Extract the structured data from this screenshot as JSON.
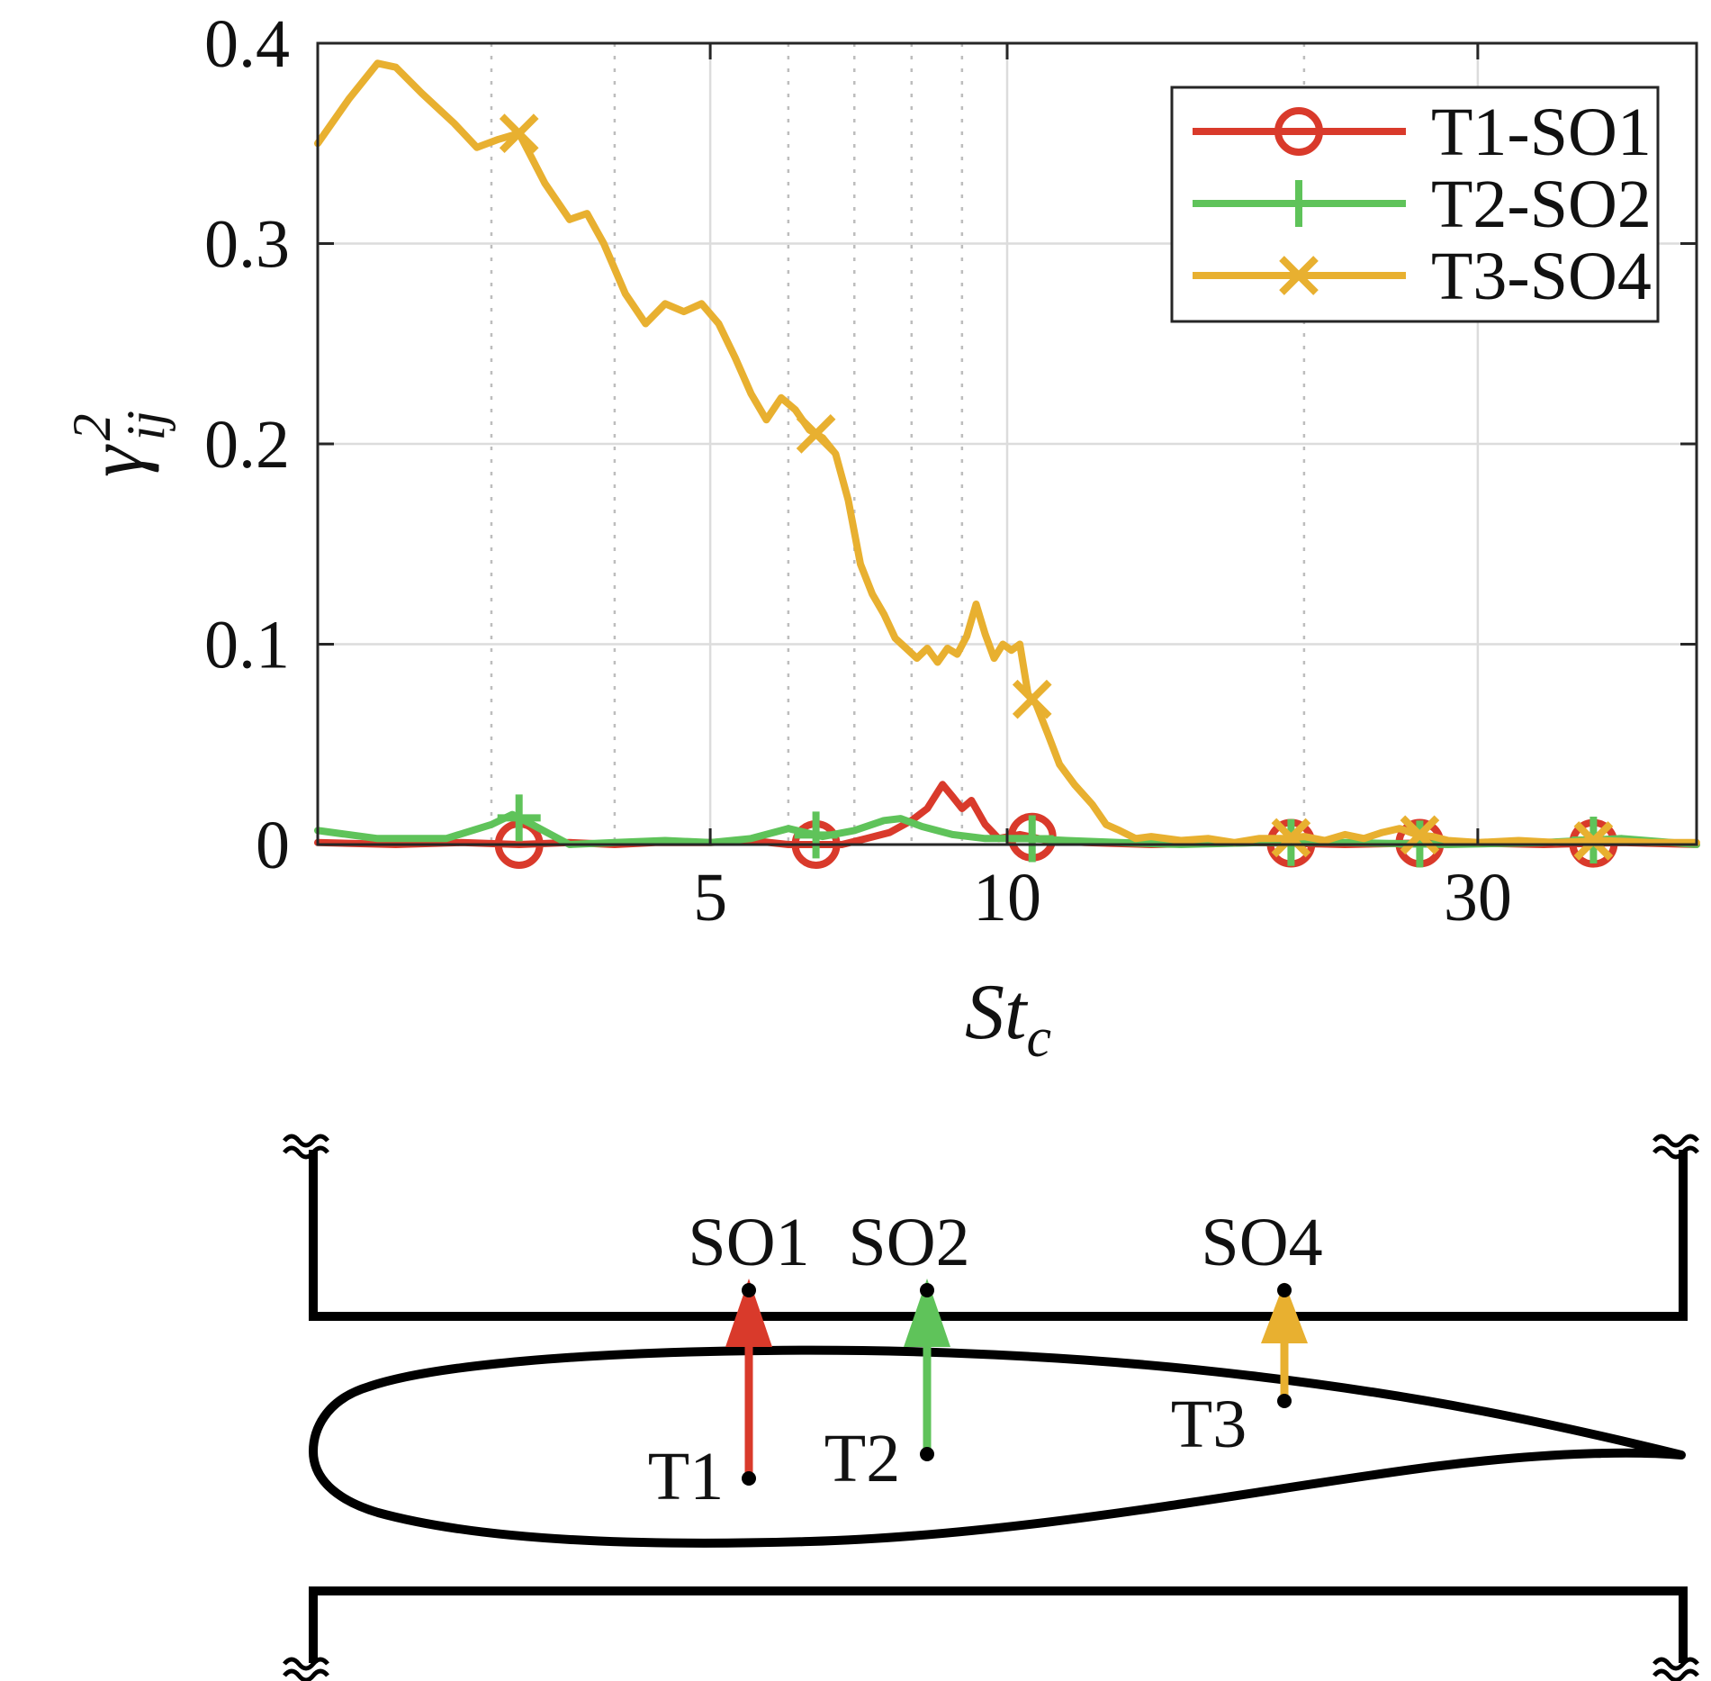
{
  "chart_data": {
    "type": "line",
    "title": "",
    "xlabel": "St",
    "xlabel_sub": "c",
    "ylabel": "γ",
    "ylabel_sup": "2",
    "ylabel_sub": "ij",
    "x_scale": "log",
    "xlim": [
      2,
      50
    ],
    "ylim": [
      0,
      0.4
    ],
    "x_ticks": [
      {
        "value": 5,
        "label": "5"
      },
      {
        "value": 10,
        "label": "10"
      },
      {
        "value": 30,
        "label": "30"
      }
    ],
    "y_ticks": [
      {
        "value": 0,
        "label": "0"
      },
      {
        "value": 0.1,
        "label": "0.1"
      },
      {
        "value": 0.2,
        "label": "0.2"
      },
      {
        "value": 0.3,
        "label": "0.3"
      },
      {
        "value": 0.4,
        "label": "0.4"
      }
    ],
    "grid_major_x": [
      5,
      10,
      30
    ],
    "grid_minor_x": [
      3,
      4,
      6,
      7,
      8,
      9,
      20
    ],
    "grid": true,
    "legend_position": "top-right",
    "series": [
      {
        "name": "T1-SO1",
        "color": "#d93a2b",
        "marker": "circle",
        "points": [
          [
            2,
            0.001
          ],
          [
            2.4,
            0
          ],
          [
            2.8,
            0.001
          ],
          [
            3.2,
            0
          ],
          [
            3.6,
            0.001
          ],
          [
            4,
            0
          ],
          [
            4.4,
            0.001
          ],
          [
            5,
            0.001
          ],
          [
            5.5,
            0.002
          ],
          [
            6,
            0
          ],
          [
            6.8,
            0
          ],
          [
            7.2,
            0.003
          ],
          [
            7.6,
            0.006
          ],
          [
            8,
            0.012
          ],
          [
            8.3,
            0.018
          ],
          [
            8.6,
            0.03
          ],
          [
            8.8,
            0.024
          ],
          [
            9,
            0.018
          ],
          [
            9.2,
            0.022
          ],
          [
            9.5,
            0.01
          ],
          [
            9.8,
            0.003
          ],
          [
            10.3,
            0.005
          ],
          [
            11,
            0.002
          ],
          [
            12,
            0.001
          ],
          [
            14,
            0
          ],
          [
            18,
            0.001
          ],
          [
            22,
            0
          ],
          [
            28,
            0.001
          ],
          [
            35,
            0
          ],
          [
            42,
            0.001
          ],
          [
            50,
            0
          ]
        ],
        "markers_x": [
          3.2,
          6.4,
          10.6,
          19.4,
          26.2,
          39.3
        ]
      },
      {
        "name": "T2-SO2",
        "color": "#5fc35a",
        "marker": "plus",
        "points": [
          [
            2,
            0.007
          ],
          [
            2.3,
            0.003
          ],
          [
            2.7,
            0.003
          ],
          [
            3,
            0.01
          ],
          [
            3.15,
            0.015
          ],
          [
            3.3,
            0.01
          ],
          [
            3.6,
            0
          ],
          [
            4,
            0.001
          ],
          [
            4.5,
            0.002
          ],
          [
            5,
            0.001
          ],
          [
            5.5,
            0.003
          ],
          [
            6,
            0.008
          ],
          [
            6.5,
            0.004
          ],
          [
            7,
            0.007
          ],
          [
            7.5,
            0.012
          ],
          [
            7.8,
            0.013
          ],
          [
            8.2,
            0.009
          ],
          [
            8.8,
            0.005
          ],
          [
            9.5,
            0.003
          ],
          [
            10.5,
            0.003
          ],
          [
            11.5,
            0.002
          ],
          [
            13,
            0.001
          ],
          [
            15,
            0
          ],
          [
            18,
            0.001
          ],
          [
            22,
            0.001
          ],
          [
            28,
            0
          ],
          [
            35,
            0.001
          ],
          [
            42,
            0.003
          ],
          [
            50,
            0
          ]
        ],
        "markers_x": [
          3.2,
          6.4,
          10.6,
          19.4,
          26.2,
          39.3
        ]
      },
      {
        "name": "T3-SO4",
        "color": "#e8b030",
        "marker": "x",
        "points": [
          [
            2,
            0.35
          ],
          [
            2.15,
            0.372
          ],
          [
            2.3,
            0.39
          ],
          [
            2.4,
            0.388
          ],
          [
            2.55,
            0.375
          ],
          [
            2.75,
            0.36
          ],
          [
            2.9,
            0.348
          ],
          [
            3.05,
            0.352
          ],
          [
            3.2,
            0.355
          ],
          [
            3.4,
            0.33
          ],
          [
            3.6,
            0.312
          ],
          [
            3.75,
            0.315
          ],
          [
            3.9,
            0.3
          ],
          [
            4.1,
            0.275
          ],
          [
            4.3,
            0.26
          ],
          [
            4.5,
            0.27
          ],
          [
            4.7,
            0.266
          ],
          [
            4.9,
            0.27
          ],
          [
            5.1,
            0.26
          ],
          [
            5.3,
            0.243
          ],
          [
            5.5,
            0.225
          ],
          [
            5.7,
            0.212
          ],
          [
            5.9,
            0.223
          ],
          [
            6.1,
            0.217
          ],
          [
            6.3,
            0.207
          ],
          [
            6.5,
            0.203
          ],
          [
            6.7,
            0.195
          ],
          [
            6.9,
            0.172
          ],
          [
            7.1,
            0.14
          ],
          [
            7.3,
            0.125
          ],
          [
            7.5,
            0.115
          ],
          [
            7.7,
            0.103
          ],
          [
            7.9,
            0.098
          ],
          [
            8.1,
            0.093
          ],
          [
            8.3,
            0.098
          ],
          [
            8.5,
            0.091
          ],
          [
            8.7,
            0.098
          ],
          [
            8.9,
            0.095
          ],
          [
            9.1,
            0.104
          ],
          [
            9.3,
            0.12
          ],
          [
            9.5,
            0.105
          ],
          [
            9.7,
            0.093
          ],
          [
            9.9,
            0.1
          ],
          [
            10.1,
            0.097
          ],
          [
            10.3,
            0.1
          ],
          [
            10.5,
            0.075
          ],
          [
            10.7,
            0.07
          ],
          [
            11,
            0.055
          ],
          [
            11.3,
            0.04
          ],
          [
            11.7,
            0.03
          ],
          [
            12.2,
            0.02
          ],
          [
            12.6,
            0.01
          ],
          [
            13,
            0.007
          ],
          [
            13.5,
            0.003
          ],
          [
            14,
            0.004
          ],
          [
            15,
            0.002
          ],
          [
            16,
            0.003
          ],
          [
            17,
            0.001
          ],
          [
            18,
            0.003
          ],
          [
            19,
            0.003
          ],
          [
            20,
            0.004
          ],
          [
            21,
            0.002
          ],
          [
            22,
            0.005
          ],
          [
            23,
            0.003
          ],
          [
            24,
            0.006
          ],
          [
            25,
            0.008
          ],
          [
            26,
            0.005
          ],
          [
            27,
            0.004
          ],
          [
            28,
            0.002
          ],
          [
            30,
            0.001
          ],
          [
            33,
            0.002
          ],
          [
            36,
            0.001
          ],
          [
            40,
            0.002
          ],
          [
            45,
            0.001
          ],
          [
            50,
            0.001
          ]
        ],
        "markers_x": [
          3.2,
          6.4,
          10.6,
          19.4,
          26.2,
          39.3
        ]
      }
    ]
  },
  "diagram": {
    "sensor_labels": [
      "SO1",
      "SO2",
      "SO4"
    ],
    "transducer_labels": [
      "T1",
      "T2",
      "T3"
    ],
    "arrow_colors": [
      "#d93a2b",
      "#5fc35a",
      "#e8b030"
    ]
  }
}
